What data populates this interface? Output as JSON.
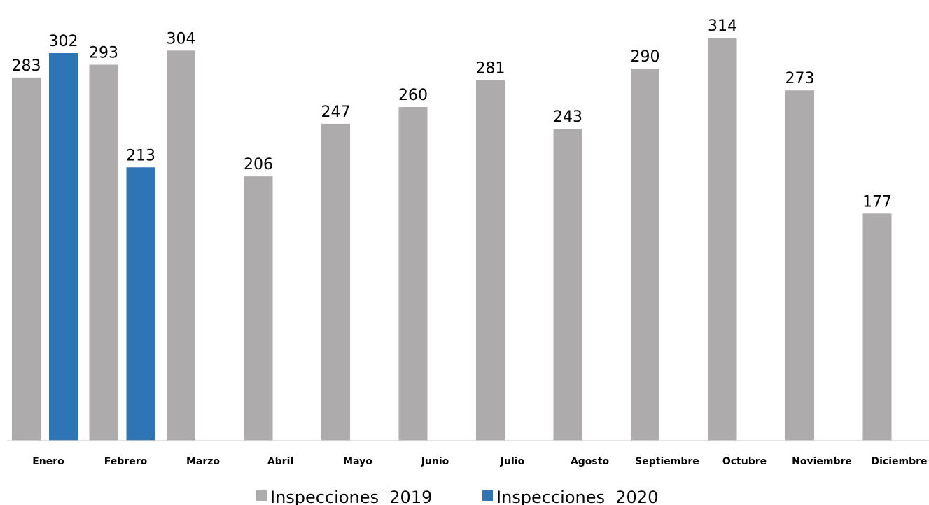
{
  "chart_data": {
    "type": "bar",
    "categories": [
      "Enero",
      "Febrero",
      "Marzo",
      "Abril",
      "Mayo",
      "Junio",
      "Julio",
      "Agosto",
      "Septiembre",
      "Octubre",
      "Noviembre",
      "Diciembre"
    ],
    "series": [
      {
        "name": "Inspecciones  2019",
        "color": "#ADABAB",
        "values": [
          283,
          293,
          304,
          206,
          247,
          260,
          281,
          243,
          290,
          314,
          273,
          177
        ]
      },
      {
        "name": "Inspecciones  2020",
        "color": "#2E75B6",
        "values": [
          302,
          213,
          null,
          null,
          null,
          null,
          null,
          null,
          null,
          null,
          null,
          null
        ]
      }
    ],
    "ylim": [
      0,
      314
    ],
    "grid": false,
    "legend_position": "bottom-center"
  }
}
